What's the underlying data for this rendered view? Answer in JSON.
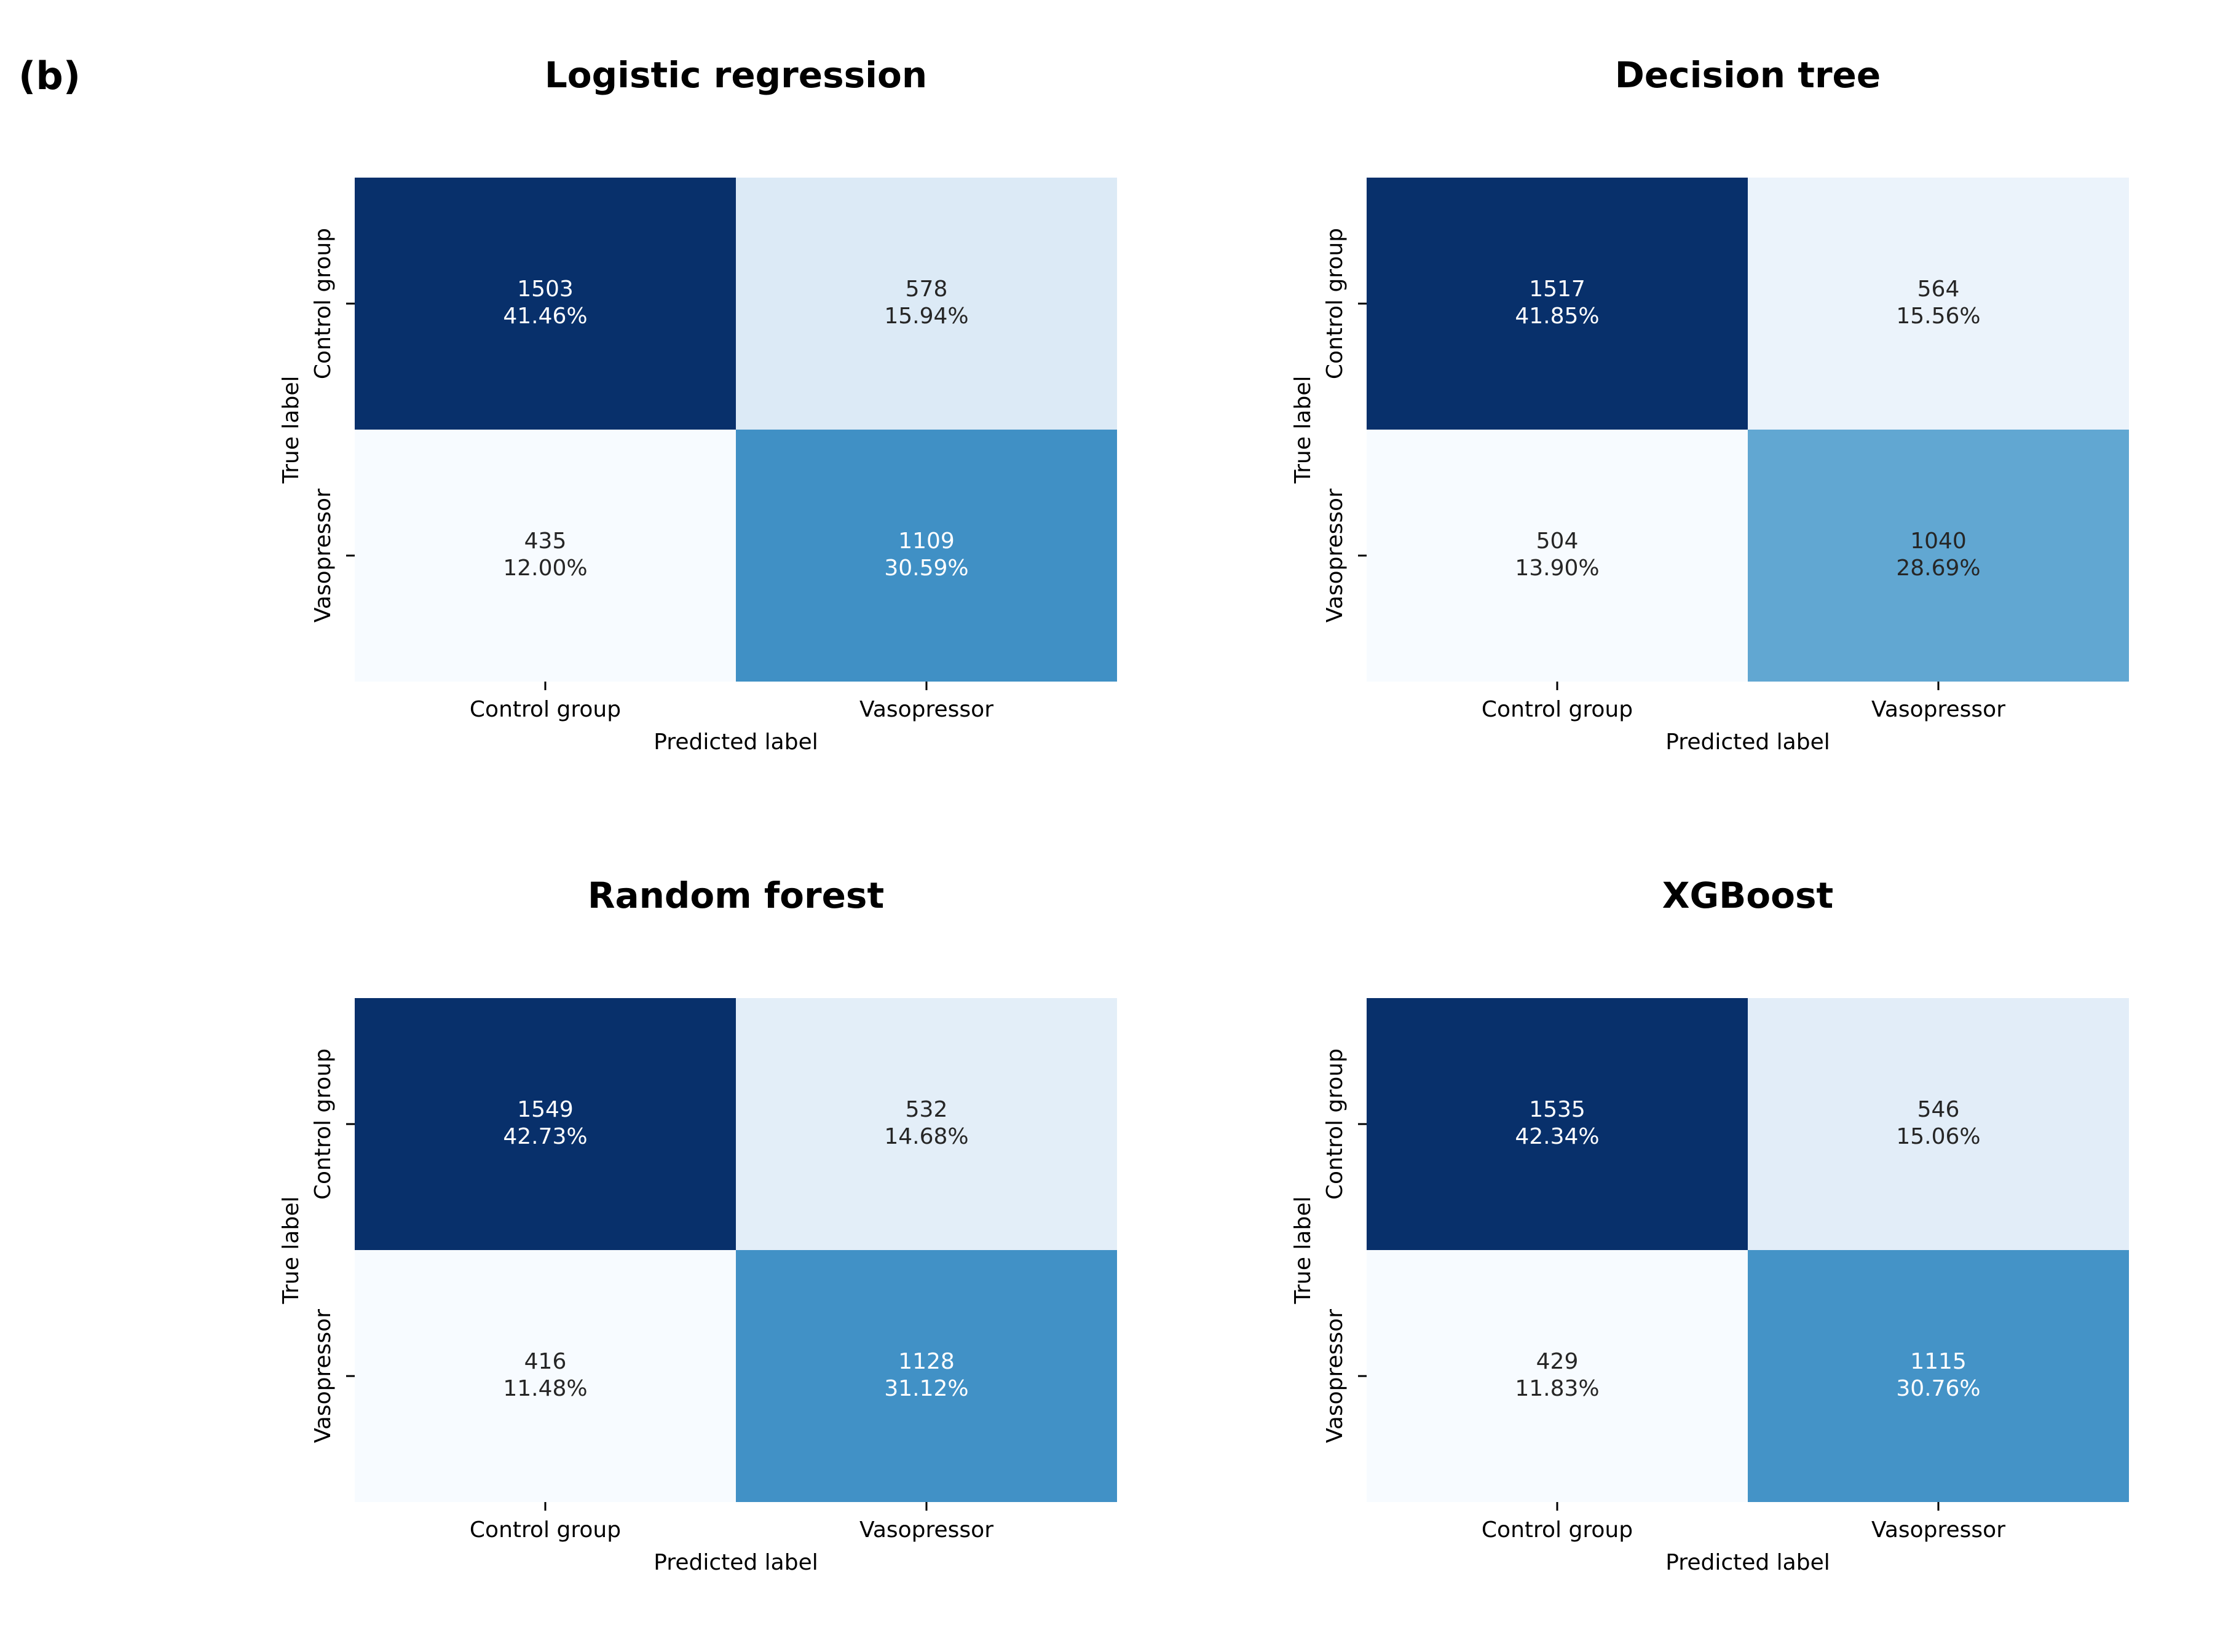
{
  "figure": {
    "panel_label": "(b)"
  },
  "chart_data": [
    {
      "type": "heatmap",
      "title": "Logistic regression",
      "xlabel": "Predicted label",
      "ylabel": "True label",
      "x_categories": [
        "Control group",
        "Vasopressor"
      ],
      "y_categories": [
        "Control group",
        "Vasopressor"
      ],
      "values": [
        [
          1503,
          578
        ],
        [
          435,
          1109
        ]
      ],
      "percentages": [
        [
          "41.46%",
          "15.94%"
        ],
        [
          "12.00%",
          "30.59%"
        ]
      ],
      "colormap": "Blues"
    },
    {
      "type": "heatmap",
      "title": "Decision tree",
      "xlabel": "Predicted label",
      "ylabel": "True label",
      "x_categories": [
        "Control group",
        "Vasopressor"
      ],
      "y_categories": [
        "Control group",
        "Vasopressor"
      ],
      "values": [
        [
          1517,
          564
        ],
        [
          504,
          1040
        ]
      ],
      "percentages": [
        [
          "41.85%",
          "15.56%"
        ],
        [
          "13.90%",
          "28.69%"
        ]
      ],
      "colormap": "Blues"
    },
    {
      "type": "heatmap",
      "title": "Random forest",
      "xlabel": "Predicted label",
      "ylabel": "True label",
      "x_categories": [
        "Control group",
        "Vasopressor"
      ],
      "y_categories": [
        "Control group",
        "Vasopressor"
      ],
      "values": [
        [
          1549,
          532
        ],
        [
          416,
          1128
        ]
      ],
      "percentages": [
        [
          "42.73%",
          "14.68%"
        ],
        [
          "11.48%",
          "31.12%"
        ]
      ],
      "colormap": "Blues"
    },
    {
      "type": "heatmap",
      "title": "XGBoost",
      "xlabel": "Predicted label",
      "ylabel": "True label",
      "x_categories": [
        "Control group",
        "Vasopressor"
      ],
      "y_categories": [
        "Control group",
        "Vasopressor"
      ],
      "values": [
        [
          1535,
          546
        ],
        [
          429,
          1115
        ]
      ],
      "percentages": [
        [
          "42.34%",
          "15.06%"
        ],
        [
          "11.83%",
          "30.76%"
        ]
      ],
      "colormap": "Blues"
    }
  ]
}
